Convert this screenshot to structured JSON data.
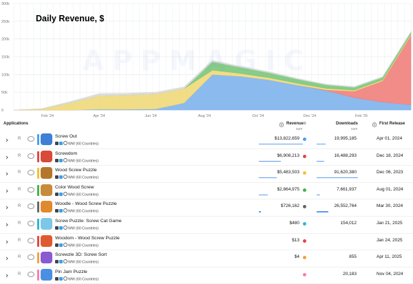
{
  "chart": {
    "title": "Daily Revenue, $",
    "watermark": "APPMAGIC",
    "y_ticks": [
      "300k",
      "250k",
      "200k",
      "150k",
      "100k",
      "50k",
      "0"
    ],
    "x_ticks": [
      "Feb '24",
      "Apr '24",
      "Jun '24",
      "Aug '24",
      "Oct '24",
      "Dec '24",
      "Feb '25"
    ]
  },
  "chart_data": {
    "type": "area",
    "stacked": true,
    "ylim": [
      0,
      300000
    ],
    "x": [
      "Jan '24",
      "Feb '24",
      "Mar '24",
      "Apr '24",
      "May '24",
      "Jun '24",
      "Jul '24",
      "Aug '24",
      "Sep '24",
      "Oct '24",
      "Nov '24",
      "Dec '24",
      "Jan '25",
      "Feb '25",
      "Mar '25"
    ],
    "series": [
      {
        "name": "Screw Out",
        "color": "#7eb3ec",
        "values": [
          0,
          0,
          0,
          2000,
          2000,
          3000,
          20000,
          100000,
          95000,
          85000,
          70000,
          55000,
          35000,
          22000,
          15000
        ]
      },
      {
        "name": "Screwdom",
        "color": "#ef7f7c",
        "values": [
          0,
          0,
          0,
          0,
          0,
          0,
          0,
          0,
          0,
          0,
          0,
          2000,
          18000,
          60000,
          195000
        ]
      },
      {
        "name": "Wood Screw Puzzle",
        "color": "#f0d979",
        "values": [
          0,
          3000,
          20000,
          38000,
          40000,
          42000,
          40000,
          12000,
          8000,
          6000,
          5000,
          4000,
          3000,
          3000,
          3000
        ]
      },
      {
        "name": "Color Wood Screw",
        "color": "#7ac77a",
        "values": [
          0,
          0,
          0,
          0,
          0,
          0,
          0,
          24000,
          17000,
          14000,
          12000,
          10000,
          8000,
          7000,
          6000
        ]
      },
      {
        "name": "Woodle - Wood Screw Puzzle",
        "color": "#d9d9d9",
        "values": [
          0,
          1000,
          4000,
          6000,
          5000,
          5000,
          5000,
          4000,
          3000,
          3000,
          2000,
          2000,
          2000,
          2000,
          2000
        ]
      }
    ]
  },
  "table": {
    "col_applications": "Applications",
    "col_revenue": "Revenue",
    "col_revenue_sub": "sum",
    "col_downloads": "Downloads",
    "col_downloads_sub": "sum",
    "col_release": "First Release",
    "region": "WW (60 Countries)",
    "rows": [
      {
        "name": "Screw Out",
        "revenue": "$13,822,659",
        "downloads": "19,995,185",
        "release": "Apr 01, 2024",
        "color": "#4a9ef5",
        "icon": "#3f7fd6",
        "rev_frac": 1.0,
        "dl_frac": 0.22
      },
      {
        "name": "Screwdom",
        "revenue": "$6,908,213",
        "downloads": "16,488,293",
        "release": "Dec 18, 2024",
        "color": "#e84545",
        "icon": "#d84a3a",
        "rev_frac": 0.5,
        "dl_frac": 0.18
      },
      {
        "name": "Wood Screw Puzzle",
        "revenue": "$5,483,503",
        "downloads": "91,620,380",
        "release": "Dec 06, 2023",
        "color": "#f2c230",
        "icon": "#b5762c",
        "rev_frac": 0.4,
        "dl_frac": 1.0
      },
      {
        "name": "Color Wood Screw",
        "revenue": "$2,864,975",
        "downloads": "7,661,937",
        "release": "Aug 01, 2024",
        "color": "#45b34f",
        "icon": "#c88a3b",
        "rev_frac": 0.21,
        "dl_frac": 0.08
      },
      {
        "name": "Woodle - Wood Screw Puzzle",
        "revenue": "$726,162",
        "downloads": "26,552,764",
        "release": "Mar 30, 2024",
        "color": "#666666",
        "icon": "#e08a2e",
        "rev_frac": 0.05,
        "dl_frac": 0.29
      },
      {
        "name": "Screw Puzzle: Screw Cat Game",
        "revenue": "$480",
        "downloads": "154,012",
        "release": "Jan 21, 2025",
        "color": "#2fb5d8",
        "icon": "#7dc8e6",
        "rev_frac": 0.0,
        "dl_frac": 0.0
      },
      {
        "name": "Woodom - Wood Screw Puzzle",
        "revenue": "$13",
        "downloads": "",
        "release": "Jan 24, 2025",
        "color": "#e84545",
        "icon": "#e05a30",
        "rev_frac": 0.0,
        "dl_frac": 0.0
      },
      {
        "name": "Screwzle 3D: Screw Sort",
        "revenue": "$4",
        "downloads": "855",
        "release": "Apr 11, 2025",
        "color": "#f2a23a",
        "icon": "#8a5ad0",
        "rev_frac": 0.0,
        "dl_frac": 0.0
      },
      {
        "name": "Pin Jam Puzzle",
        "revenue": "",
        "downloads": "20,183",
        "release": "Nov 04, 2024",
        "color": "#ff7ab0",
        "icon": "#4a90e2",
        "rev_frac": 0.0,
        "dl_frac": 0.0
      }
    ]
  },
  "icons": {
    "expand": "chevron-right-icon",
    "visibility": "eye-icon",
    "info": "info-icon",
    "sort": "sort-icon",
    "apple_store": "app-store-icon",
    "google_play": "google-play-icon",
    "globe": "globe-icon"
  }
}
